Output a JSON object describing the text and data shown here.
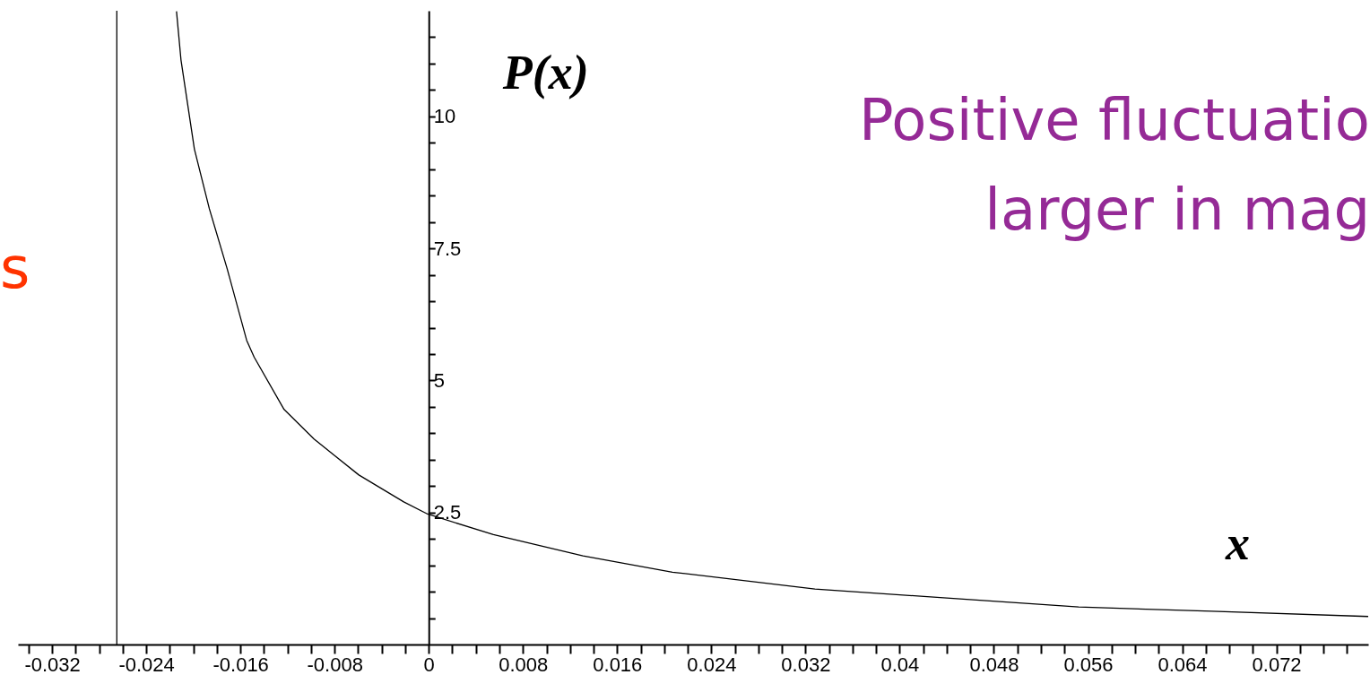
{
  "chart_data": {
    "type": "line",
    "xlabel": "x",
    "ylabel": "P(x)",
    "x": [
      -0.02143,
      -0.02105,
      -0.01991,
      -0.01864,
      -0.01712,
      -0.01547,
      -0.01483,
      -0.01229,
      -0.00975,
      -0.00594,
      -0.00213,
      -0.0001,
      0.00549,
      0.0131,
      0.0207,
      0.0328,
      0.044,
      0.0552,
      0.0665,
      0.0798
    ],
    "series": [
      {
        "color": "#000000",
        "values": [
          11.99,
          11.07,
          9.38,
          8.25,
          7.11,
          5.76,
          5.44,
          4.45,
          3.89,
          3.21,
          2.7,
          2.47,
          2.08,
          1.68,
          1.37,
          1.05,
          0.88,
          0.71,
          0.63,
          0.53
        ]
      }
    ],
    "xlim": [
      -0.0349,
      0.0798
    ],
    "ylim": [
      0,
      12
    ],
    "xticks": [
      {
        "value": -0.034,
        "label": null
      },
      -0.032,
      {
        "value": -0.03,
        "label": null
      },
      {
        "value": -0.028,
        "label": null
      },
      {
        "value": -0.026,
        "label": null
      },
      -0.024,
      {
        "value": -0.022,
        "label": null
      },
      {
        "value": -0.02,
        "label": null
      },
      {
        "value": -0.018,
        "label": null
      },
      -0.016,
      {
        "value": -0.014,
        "label": null
      },
      {
        "value": -0.012,
        "label": null
      },
      {
        "value": -0.01,
        "label": null
      },
      -0.008,
      {
        "value": -0.006,
        "label": null
      },
      {
        "value": -0.004,
        "label": null
      },
      {
        "value": -0.002,
        "label": null
      },
      0,
      {
        "value": 0.002,
        "label": null
      },
      {
        "value": 0.004,
        "label": null
      },
      {
        "value": 0.006,
        "label": null
      },
      0.008,
      {
        "value": 0.01,
        "label": null
      },
      {
        "value": 0.012,
        "label": null
      },
      {
        "value": 0.014,
        "label": null
      },
      0.016,
      {
        "value": 0.018,
        "label": null
      },
      {
        "value": 0.02,
        "label": null
      },
      {
        "value": 0.022,
        "label": null
      },
      0.024,
      {
        "value": 0.026,
        "label": null
      },
      {
        "value": 0.028,
        "label": null
      },
      {
        "value": 0.03,
        "label": null
      },
      0.032,
      {
        "value": 0.034,
        "label": null
      },
      {
        "value": 0.036,
        "label": null
      },
      {
        "value": 0.038,
        "label": null
      },
      0.04,
      {
        "value": 0.042,
        "label": null
      },
      {
        "value": 0.044,
        "label": null
      },
      {
        "value": 0.046,
        "label": null
      },
      0.048,
      {
        "value": 0.05,
        "label": null
      },
      {
        "value": 0.052,
        "label": null
      },
      {
        "value": 0.054,
        "label": null
      },
      0.056,
      {
        "value": 0.058,
        "label": null
      },
      {
        "value": 0.06,
        "label": null
      },
      {
        "value": 0.062,
        "label": null
      },
      0.064,
      {
        "value": 0.066,
        "label": null
      },
      {
        "value": 0.068,
        "label": null
      },
      {
        "value": 0.07,
        "label": null
      },
      0.072,
      {
        "value": 0.074,
        "label": null
      },
      {
        "value": 0.076,
        "label": null
      },
      {
        "value": 0.078,
        "label": null
      }
    ],
    "yticks": [
      {
        "value": 0.5,
        "label": null
      },
      {
        "value": 1,
        "label": null
      },
      {
        "value": 1.5,
        "label": null
      },
      {
        "value": 2,
        "label": null
      },
      2.5,
      {
        "value": 3,
        "label": null
      },
      {
        "value": 3.5,
        "label": null
      },
      {
        "value": 4,
        "label": null
      },
      {
        "value": 4.5,
        "label": null
      },
      5,
      {
        "value": 5.5,
        "label": null
      },
      {
        "value": 6,
        "label": null
      },
      {
        "value": 6.5,
        "label": null
      },
      {
        "value": 7,
        "label": null
      },
      7.5,
      {
        "value": 8,
        "label": null
      },
      {
        "value": 8.5,
        "label": null
      },
      {
        "value": 9,
        "label": null
      },
      {
        "value": 9.5,
        "label": null
      },
      10,
      {
        "value": 10.5,
        "label": null
      },
      {
        "value": 11,
        "label": null
      },
      {
        "value": 11.5,
        "label": null
      }
    ],
    "ref_lines": [
      {
        "axis": "x",
        "value": -0.0265,
        "color": "#000000"
      }
    ],
    "annotations": [
      "Positive fluctuatio\nlarger in mag",
      "s"
    ],
    "grid": false,
    "marker": "none",
    "line_style": "solid"
  }
}
